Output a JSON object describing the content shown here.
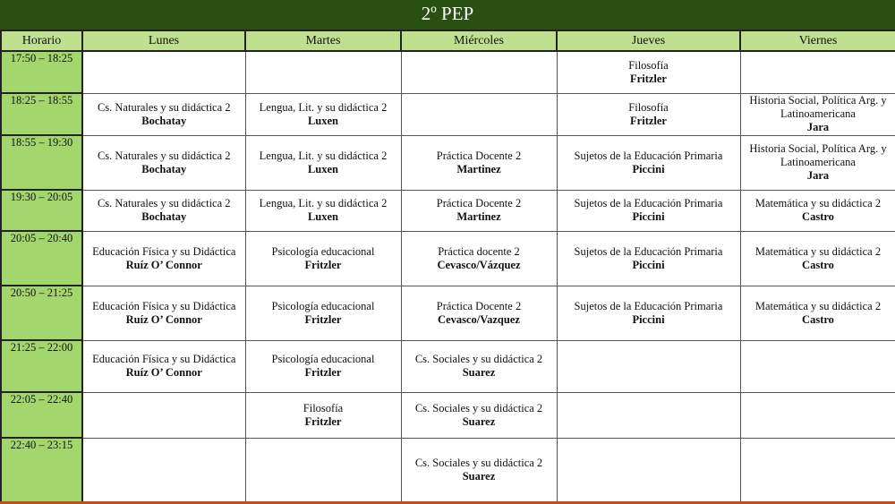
{
  "title": "2º PEP",
  "headers": [
    "Horario",
    "Lunes",
    "Martes",
    "Miércoles",
    "Jueves",
    "Viernes"
  ],
  "rows": [
    {
      "time": "17:50 – 18:25",
      "cells": [
        {},
        {},
        {},
        {
          "subject": "Filosofía",
          "teacher": "Fritzler"
        },
        {}
      ]
    },
    {
      "time": "18:25 – 18:55",
      "cells": [
        {
          "subject": "Cs. Naturales y su didáctica 2",
          "teacher": "Bochatay"
        },
        {
          "subject": "Lengua, Lit. y su didáctica  2",
          "teacher": "Luxen"
        },
        {},
        {
          "subject": "Filosofía",
          "teacher": "Fritzler"
        },
        {
          "subject": "Historia Social, Política Arg. y Latinoamericana",
          "teacher": "Jara"
        }
      ]
    },
    {
      "time": "18:55 – 19:30",
      "cells": [
        {
          "subject": "Cs. Naturales y su didáctica 2",
          "teacher": "Bochatay"
        },
        {
          "subject": "Lengua, Lit. y su didáctica 2",
          "teacher": "Luxen"
        },
        {
          "subject": "Práctica Docente 2",
          "teacher": "Martinez"
        },
        {
          "subject": "Sujetos de la Educación Primaria",
          "teacher": "Piccini"
        },
        {
          "subject": "Historia Social, Política Arg. y Latinoamericana",
          "teacher": "Jara"
        }
      ]
    },
    {
      "time": "19:30 – 20:05",
      "cells": [
        {
          "subject": "Cs. Naturales y su didáctica 2",
          "teacher": "Bochatay"
        },
        {
          "subject": "Lengua, Lit. y su didáctica 2",
          "teacher": "Luxen"
        },
        {
          "subject": "Práctica Docente 2",
          "teacher": "Martinez"
        },
        {
          "subject": "Sujetos de la Educación Primaria",
          "teacher": "Piccini"
        },
        {
          "subject": "Matemática y su didáctica 2",
          "teacher": "Castro"
        }
      ]
    },
    {
      "time": "20:05 – 20:40",
      "cells": [
        {
          "subject": "Educación Física y su Didáctica",
          "teacher": "Ruíz O’ Connor"
        },
        {
          "subject": "Psicología educacional",
          "teacher": "Fritzler"
        },
        {
          "subject": "Práctica docente 2",
          "teacher": "Cevasco/Vázquez"
        },
        {
          "subject": "Sujetos de la Educación Primaria",
          "teacher": "Piccini"
        },
        {
          "subject": "Matemática y su didáctica 2",
          "teacher": "Castro"
        }
      ]
    },
    {
      "time": "20:50 – 21:25",
      "cells": [
        {
          "subject": "Educación Física y su Didáctica",
          "teacher": "Ruíz O’ Connor"
        },
        {
          "subject": "Psicología educacional",
          "teacher": "Fritzler"
        },
        {
          "subject": "Práctica Docente 2",
          "teacher": "Cevasco/Vazquez"
        },
        {
          "subject": "Sujetos de la Educación Primaria",
          "teacher": "Piccini"
        },
        {
          "subject": "Matemática y su didáctica 2",
          "teacher": "Castro"
        }
      ]
    },
    {
      "time": "21:25 – 22:00",
      "cells": [
        {
          "subject": "Educación Física y su Didáctica",
          "teacher": "Ruíz O’ Connor"
        },
        {
          "subject": "Psicología educacional",
          "teacher": "Fritzler"
        },
        {
          "subject": "Cs. Sociales y su didáctica 2",
          "teacher": "Suarez"
        },
        {},
        {}
      ]
    },
    {
      "time": "22:05 – 22:40",
      "cells": [
        {},
        {
          "subject": "Filosofía",
          "teacher": "Fritzler"
        },
        {
          "subject": "Cs. Sociales y su didáctica 2",
          "teacher": "Suarez"
        },
        {},
        {}
      ]
    },
    {
      "time": "22:40 – 23:15",
      "cells": [
        {},
        {},
        {
          "subject": "Cs. Sociales y su didáctica 2",
          "teacher": "Suarez"
        },
        {},
        {}
      ]
    }
  ]
}
